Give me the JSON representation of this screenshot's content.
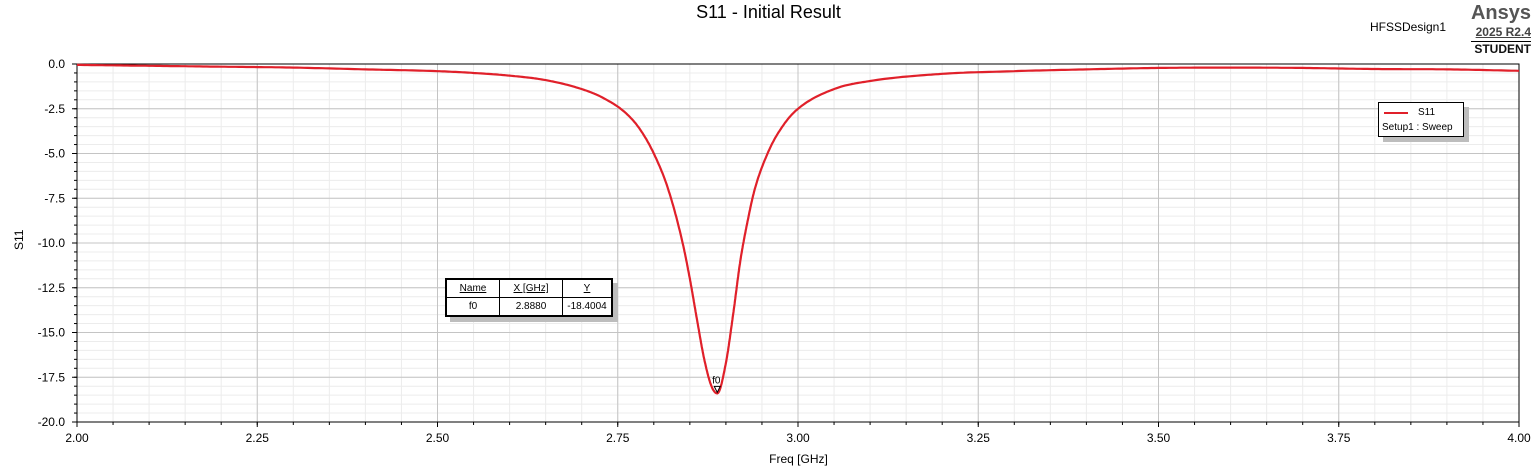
{
  "header": {
    "title": "S11 - Initial Result",
    "design_name": "HFSSDesign1",
    "brand": {
      "name": "Ansys",
      "version": "2025 R2.4",
      "edition": "STUDENT"
    }
  },
  "legend": {
    "trace": "S11",
    "source": "Setup1 : Sweep",
    "color": "#e0202a"
  },
  "marker_table": {
    "headers": [
      "Name",
      "X [GHz]",
      "Y"
    ],
    "rows": [
      [
        "f0",
        "2.8880",
        "-18.4004"
      ]
    ]
  },
  "marker": {
    "name": "f0",
    "x": 2.888,
    "y": -18.4004
  },
  "chart_data": {
    "type": "line",
    "title": "S11 - Initial Result",
    "xlabel": "Freq [GHz]",
    "ylabel": "S11",
    "xlim": [
      2.0,
      4.0
    ],
    "ylim": [
      -20.0,
      0.0
    ],
    "x_ticks": [
      "2.00",
      "2.25",
      "2.50",
      "2.75",
      "3.00",
      "3.25",
      "3.50",
      "3.75",
      "4.00"
    ],
    "y_ticks": [
      "0.0",
      "-2.5",
      "-5.0",
      "-7.5",
      "-10.0",
      "-12.5",
      "-15.0",
      "-17.5",
      "-20.0"
    ],
    "grid": true,
    "legend_position": "top-right",
    "series": [
      {
        "name": "S11",
        "color": "#e0202a",
        "x": [
          2.0,
          2.1,
          2.2,
          2.3,
          2.4,
          2.5,
          2.55,
          2.6,
          2.65,
          2.7,
          2.73,
          2.76,
          2.78,
          2.8,
          2.82,
          2.84,
          2.85,
          2.86,
          2.87,
          2.88,
          2.888,
          2.9,
          2.91,
          2.92,
          2.93,
          2.94,
          2.96,
          2.98,
          3.0,
          3.05,
          3.1,
          3.2,
          3.3,
          3.4,
          3.5,
          3.6,
          3.7,
          3.8,
          3.9,
          4.0
        ],
        "y": [
          -0.05,
          -0.1,
          -0.15,
          -0.2,
          -0.3,
          -0.4,
          -0.5,
          -0.65,
          -0.9,
          -1.4,
          -1.9,
          -2.7,
          -3.6,
          -5.0,
          -7.0,
          -10.0,
          -12.0,
          -14.3,
          -16.5,
          -18.0,
          -18.4,
          -16.7,
          -14.0,
          -11.0,
          -8.8,
          -7.0,
          -4.8,
          -3.4,
          -2.5,
          -1.4,
          -0.95,
          -0.55,
          -0.4,
          -0.3,
          -0.22,
          -0.2,
          -0.22,
          -0.28,
          -0.3,
          -0.38
        ]
      }
    ]
  }
}
